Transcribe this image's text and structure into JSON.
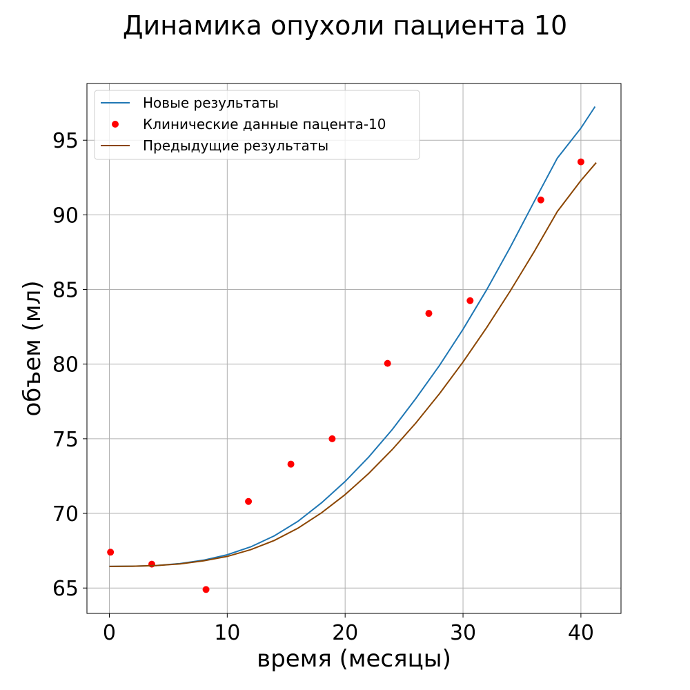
{
  "chart_data": {
    "type": "line",
    "title": "Динамика опухоли пациента 10",
    "xlabel": "время (месяцы)",
    "ylabel": "объем (мл)",
    "xlim": [
      -1.9,
      43.4
    ],
    "ylim": [
      63.3,
      98.8
    ],
    "xticks": [
      0,
      10,
      20,
      30,
      40
    ],
    "yticks": [
      65,
      70,
      75,
      80,
      85,
      90,
      95
    ],
    "grid": true,
    "legend_position": "top-left",
    "series": [
      {
        "name": "Новые результаты",
        "kind": "line",
        "color": "#1f77b4",
        "x": [
          0,
          2,
          4,
          6,
          8,
          10,
          12,
          14,
          16,
          18,
          20,
          22,
          24,
          26,
          28,
          30,
          32,
          34,
          36,
          38,
          40,
          41.2
        ],
        "y": [
          66.45,
          66.46,
          66.51,
          66.64,
          66.87,
          67.23,
          67.76,
          68.5,
          69.47,
          70.71,
          72.14,
          73.78,
          75.62,
          77.7,
          79.91,
          82.33,
          84.97,
          87.82,
          90.84,
          93.8,
          95.81,
          97.25
        ]
      },
      {
        "name": "Клинические данные пацента-10",
        "kind": "scatter",
        "color": "#ff0000",
        "x": [
          0.1,
          3.6,
          8.2,
          11.8,
          15.4,
          18.9,
          23.6,
          27.1,
          30.6,
          36.6,
          40.0
        ],
        "y": [
          67.4,
          66.6,
          64.9,
          70.8,
          73.3,
          75.0,
          80.05,
          83.4,
          84.25,
          91.0,
          93.55
        ]
      },
      {
        "name": "Предыдущие результаты",
        "kind": "line",
        "color": "#8b4500",
        "x": [
          0,
          2,
          4,
          6,
          8,
          10,
          12,
          14,
          16,
          18,
          20,
          22,
          24,
          26,
          28,
          30,
          32,
          34,
          36,
          38,
          40,
          41.3
        ],
        "y": [
          66.45,
          66.46,
          66.51,
          66.62,
          66.82,
          67.12,
          67.57,
          68.19,
          69.01,
          70.04,
          71.26,
          72.68,
          74.28,
          76.06,
          78.02,
          80.14,
          82.44,
          84.89,
          87.49,
          90.22,
          92.3,
          93.5
        ]
      }
    ]
  }
}
